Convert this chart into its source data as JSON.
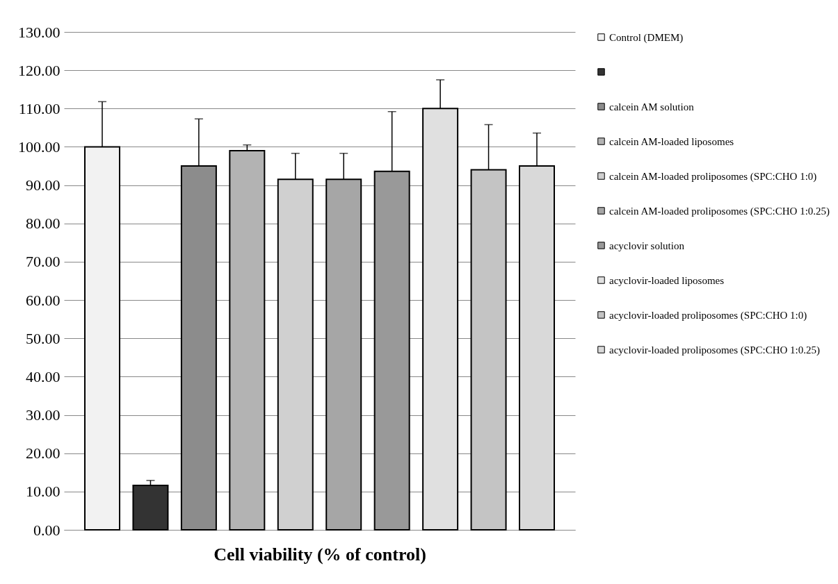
{
  "chart_data": {
    "type": "bar",
    "xlabel": "Cell viability (% of control)",
    "categories": [
      null
    ],
    "series": [
      {
        "name": "Control (DMEM)",
        "color": "#f2f2f2",
        "values": [
          100.0
        ],
        "errors": [
          [
            100.0,
            111.8
          ]
        ]
      },
      {
        "name": null,
        "color": "#333333",
        "values": [
          11.6
        ],
        "errors": [
          [
            11.6,
            12.9
          ]
        ]
      },
      {
        "name": "calcein AM solution",
        "color": "#8c8c8c",
        "values": [
          95.0
        ],
        "errors": [
          [
            95.0,
            107.3
          ]
        ]
      },
      {
        "name": "calcein AM-loaded liposomes",
        "color": "#b3b3b3",
        "values": [
          99.0
        ],
        "errors": [
          [
            99.0,
            100.5
          ]
        ]
      },
      {
        "name": "calcein AM-loaded proliposomes (SPC:CHO 1:0)",
        "color": "#d0d0d0",
        "values": [
          91.5
        ],
        "errors": [
          [
            91.5,
            98.3
          ]
        ]
      },
      {
        "name": "calcein AM-loaded proliposomes (SPC:CHO 1:0.25)",
        "color": "#a6a6a6",
        "values": [
          91.5
        ],
        "errors": [
          [
            91.5,
            98.3
          ]
        ]
      },
      {
        "name": "acyclovir solution",
        "color": "#999999",
        "values": [
          93.6
        ],
        "errors": [
          [
            93.6,
            109.2
          ]
        ]
      },
      {
        "name": "acyclovir-loaded liposomes",
        "color": "#e0e0e0",
        "values": [
          110.0
        ],
        "errors": [
          [
            110.0,
            117.5
          ]
        ]
      },
      {
        "name": "acyclovir-loaded proliposomes (SPC:CHO 1:0)",
        "color": "#c4c4c4",
        "values": [
          94.0
        ],
        "errors": [
          [
            94.0,
            105.8
          ]
        ]
      },
      {
        "name": "acyclovir-loaded proliposomes (SPC:CHO 1:0.25)",
        "color": "#d9d9d9",
        "values": [
          95.0
        ],
        "errors": [
          [
            95.0,
            103.6
          ]
        ]
      }
    ],
    "ylim": [
      0,
      130
    ],
    "yticks": [
      {
        "value": 0,
        "label": "0.00"
      },
      {
        "value": 10,
        "label": "10.00"
      },
      {
        "value": 20,
        "label": "20.00"
      },
      {
        "value": 30,
        "label": "30.00"
      },
      {
        "value": 40,
        "label": "40.00"
      },
      {
        "value": 50,
        "label": "50.00"
      },
      {
        "value": 60,
        "label": "60.00"
      },
      {
        "value": 70,
        "label": "70.00"
      },
      {
        "value": 80,
        "label": "80.00"
      },
      {
        "value": 90,
        "label": "90.00"
      },
      {
        "value": 100,
        "label": "100.00"
      },
      {
        "value": 110,
        "label": "110.00"
      },
      {
        "value": 120,
        "label": "120.00"
      },
      {
        "value": 130,
        "label": "130.00"
      }
    ],
    "grid": "y",
    "legend": "right",
    "tick_labels": "y"
  }
}
